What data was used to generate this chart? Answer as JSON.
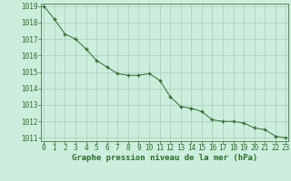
{
  "x": [
    0,
    1,
    2,
    3,
    4,
    5,
    6,
    7,
    8,
    9,
    10,
    11,
    12,
    13,
    14,
    15,
    16,
    17,
    18,
    19,
    20,
    21,
    22,
    23
  ],
  "y": [
    1019.0,
    1018.2,
    1017.3,
    1017.0,
    1016.4,
    1015.7,
    1015.3,
    1014.9,
    1014.8,
    1014.8,
    1014.9,
    1014.5,
    1013.5,
    1012.9,
    1012.8,
    1012.6,
    1012.1,
    1012.0,
    1012.0,
    1011.9,
    1011.6,
    1011.5,
    1011.1,
    1011.0
  ],
  "line_color": "#2d6a2d",
  "marker": "+",
  "bg_color": "#cceedd",
  "grid_color": "#aaccbb",
  "xlabel": "Graphe pression niveau de la mer (hPa)",
  "ylim_min": 1011,
  "ylim_max": 1019,
  "xlim_min": 0,
  "xlim_max": 23,
  "yticks": [
    1011,
    1012,
    1013,
    1014,
    1015,
    1016,
    1017,
    1018,
    1019
  ],
  "xticks": [
    0,
    1,
    2,
    3,
    4,
    5,
    6,
    7,
    8,
    9,
    10,
    11,
    12,
    13,
    14,
    15,
    16,
    17,
    18,
    19,
    20,
    21,
    22,
    23
  ],
  "xlabel_fontsize": 6.5,
  "tick_fontsize": 5.5,
  "dark_green": "#2d6a2d",
  "spine_color": "#4a7a4a"
}
